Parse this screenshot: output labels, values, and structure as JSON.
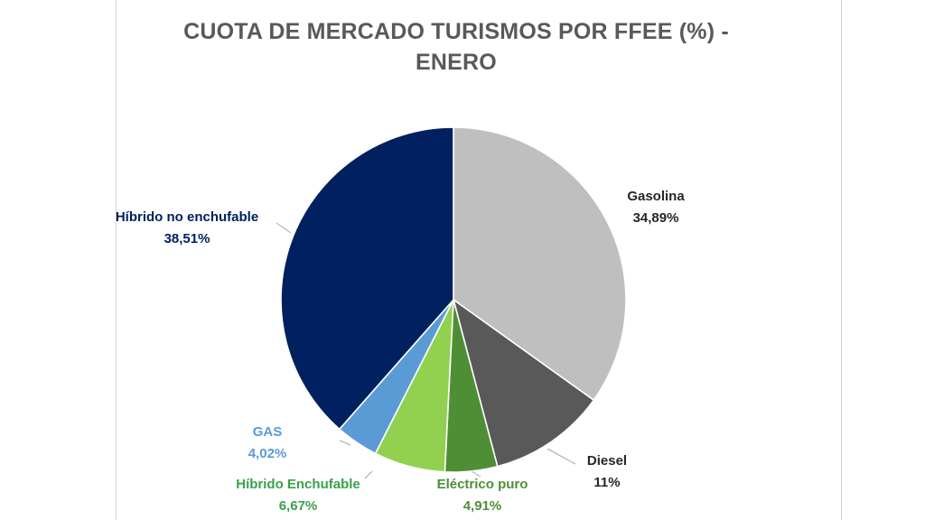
{
  "chart_data": {
    "type": "pie",
    "title": "CUOTA DE MERCADO TURISMOS POR FFEE (%) - ENERO",
    "title_lines": [
      "CUOTA DE MERCADO TURISMOS POR FFEE (%) -",
      "ENERO"
    ],
    "start_angle_deg": 0,
    "direction": "clockwise",
    "legend": "none",
    "slices": [
      {
        "name": "Gasolina",
        "value": 34.89,
        "label": "34,89%",
        "color": "#bfbfbf",
        "text_color": "#262626"
      },
      {
        "name": "Diesel",
        "value": 11.0,
        "label": "11%",
        "color": "#595959",
        "text_color": "#262626"
      },
      {
        "name": "Eléctrico puro",
        "value": 4.91,
        "label": "4,91%",
        "color": "#4e8f36",
        "text_color": "#4e8f36"
      },
      {
        "name": "Híbrido Enchufable",
        "value": 6.67,
        "label": "6,67%",
        "color": "#92d050",
        "text_color": "#38a14a"
      },
      {
        "name": "GAS",
        "value": 4.02,
        "label": "4,02%",
        "color": "#5b9bd5",
        "text_color": "#5b9bd5"
      },
      {
        "name": "Híbrido no enchufable",
        "value": 38.51,
        "label": "38,51%",
        "color": "#002060",
        "text_color": "#002060"
      }
    ]
  }
}
